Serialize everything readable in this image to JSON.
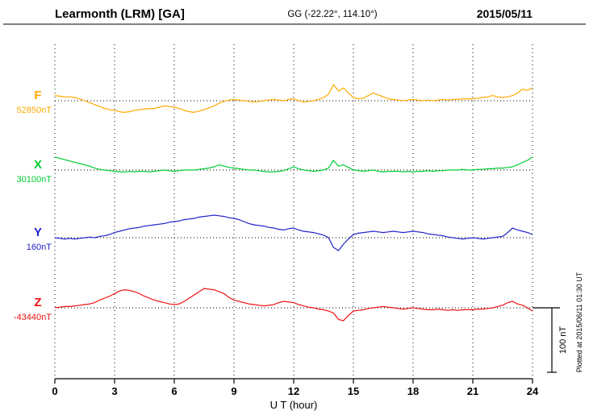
{
  "header": {
    "station": "Learmonth (LRM)  [GA]",
    "coords": "GG (-22.22°, 114.10°)",
    "date": "2015/05/11"
  },
  "side_note": "Plotted at 2015/06/11 01:30 UT",
  "scale_bar": {
    "label": "100 nT",
    "nT": 100
  },
  "chart_data": {
    "type": "line",
    "title": "Learmonth (LRM)  [GA]",
    "xlabel": "U T (hour)",
    "ylabel": "",
    "x_ticks": [
      0,
      3,
      6,
      9,
      12,
      15,
      18,
      21,
      24
    ],
    "x_range": [
      0,
      24
    ],
    "x_start": 0,
    "x_step": 0.25,
    "grid": "dotted-vertical-every-3h",
    "legend_position": "left-of-baselines",
    "amplitude_scale_nT_per_bar": 100,
    "series": [
      {
        "name": "F",
        "baseline_label": "52850nT",
        "baseline_nT": 52850,
        "color": "#ffaa00",
        "offsets_nT": [
          8,
          7,
          6,
          6,
          5,
          3,
          0,
          -3,
          -6,
          -9,
          -12,
          -14,
          -15,
          -17,
          -18,
          -17,
          -15,
          -14,
          -13,
          -12,
          -12,
          -10,
          -8,
          -9,
          -10,
          -12,
          -15,
          -17,
          -18,
          -16,
          -14,
          -11,
          -8,
          -4,
          -1,
          1,
          2,
          1,
          0,
          -1,
          -2,
          -1,
          0,
          1,
          2,
          1,
          0,
          2,
          3,
          0,
          -2,
          -1,
          0,
          2,
          5,
          10,
          25,
          15,
          20,
          12,
          5,
          3,
          4,
          8,
          12,
          9,
          6,
          3,
          2,
          1,
          0,
          1,
          2,
          1,
          0,
          1,
          0,
          1,
          2,
          1,
          2,
          2,
          3,
          3,
          3,
          4,
          5,
          6,
          8,
          6,
          5,
          6,
          8,
          12,
          18,
          16,
          20
        ]
      },
      {
        "name": "X",
        "baseline_label": "30100nT",
        "baseline_nT": 30100,
        "color": "#00cc33",
        "offsets_nT": [
          20,
          18,
          16,
          14,
          12,
          10,
          8,
          6,
          3,
          1,
          0,
          -1,
          -2,
          -3,
          -3,
          -2,
          -3,
          -2,
          -2,
          -3,
          -2,
          -1,
          0,
          -1,
          -2,
          -1,
          0,
          0,
          0,
          1,
          2,
          3,
          5,
          8,
          6,
          4,
          3,
          2,
          1,
          0,
          0,
          -1,
          -2,
          -3,
          -3,
          -2,
          -1,
          2,
          5,
          2,
          0,
          -1,
          -2,
          -1,
          0,
          3,
          15,
          6,
          8,
          4,
          0,
          -1,
          -2,
          -1,
          0,
          -2,
          -3,
          -2,
          -2,
          -2,
          -3,
          -2,
          -3,
          -2,
          -2,
          -1,
          -2,
          -1,
          -1,
          0,
          0,
          0,
          1,
          0,
          0,
          1,
          1,
          2,
          2,
          3,
          3,
          4,
          5,
          8,
          12,
          15,
          20
        ]
      },
      {
        "name": "Y",
        "baseline_label": "160nT",
        "baseline_nT": 160,
        "color": "#2222cc",
        "offsets_nT": [
          0,
          -1,
          -2,
          -1,
          -2,
          -1,
          0,
          1,
          0,
          2,
          3,
          5,
          8,
          10,
          12,
          14,
          15,
          16,
          18,
          19,
          20,
          21,
          22,
          24,
          25,
          26,
          28,
          29,
          30,
          32,
          33,
          34,
          35,
          34,
          33,
          31,
          30,
          28,
          25,
          22,
          20,
          19,
          18,
          16,
          15,
          13,
          12,
          14,
          15,
          12,
          10,
          9,
          8,
          6,
          4,
          0,
          -15,
          -20,
          -10,
          -2,
          5,
          7,
          8,
          9,
          10,
          9,
          8,
          9,
          10,
          9,
          8,
          9,
          10,
          9,
          8,
          6,
          5,
          4,
          3,
          1,
          0,
          -1,
          -2,
          -1,
          0,
          -1,
          -2,
          -1,
          0,
          1,
          2,
          8,
          15,
          12,
          10,
          8,
          5
        ]
      },
      {
        "name": "Z",
        "baseline_label": "-43440nT",
        "baseline_nT": -43440,
        "color": "#ee1111",
        "offsets_nT": [
          0,
          1,
          2,
          2,
          3,
          4,
          5,
          6,
          8,
          12,
          15,
          18,
          22,
          26,
          28,
          27,
          25,
          22,
          18,
          15,
          12,
          10,
          8,
          6,
          5,
          6,
          10,
          15,
          20,
          25,
          30,
          29,
          28,
          25,
          22,
          16,
          12,
          10,
          8,
          6,
          5,
          4,
          3,
          4,
          5,
          8,
          10,
          9,
          8,
          5,
          3,
          1,
          0,
          -2,
          -3,
          -5,
          -8,
          -18,
          -20,
          -12,
          -5,
          -4,
          -3,
          -1,
          0,
          1,
          2,
          1,
          0,
          -1,
          -2,
          -1,
          0,
          -1,
          -2,
          -3,
          -3,
          -2,
          -3,
          -4,
          -3,
          -4,
          -3,
          -3,
          -3,
          -2,
          -2,
          -1,
          0,
          2,
          4,
          8,
          10,
          6,
          4,
          0,
          -5
        ]
      }
    ]
  }
}
